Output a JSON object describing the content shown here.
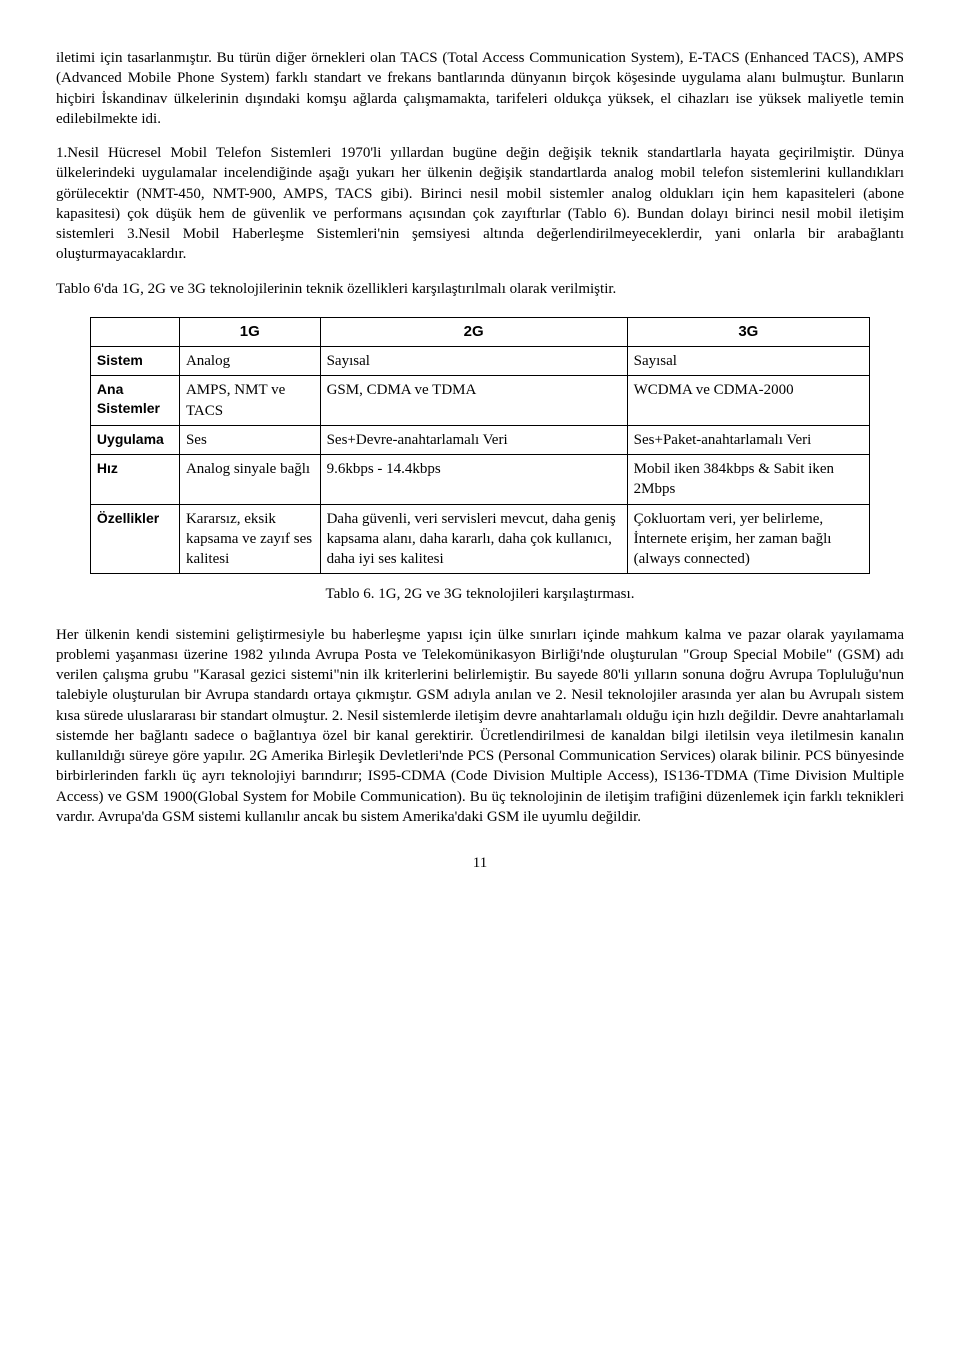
{
  "paragraphs": {
    "p1": "iletimi için tasarlanmıştır. Bu türün diğer örnekleri olan TACS (Total Access Communication System), E-TACS (Enhanced TACS), AMPS (Advanced Mobile Phone System) farklı standart ve frekans bantlarında dünyanın birçok köşesinde uygulama alanı bulmuştur. Bunların hiçbiri İskandinav ülkelerinin dışındaki komşu ağlarda çalışmamakta, tarifeleri oldukça yüksek, el cihazları ise yüksek maliyetle temin edilebilmekte idi.",
    "p2": "1.Nesil Hücresel Mobil Telefon Sistemleri 1970'li yıllardan bugüne değin değişik teknik standartlarla hayata geçirilmiştir. Dünya ülkelerindeki uygulamalar incelendiğinde aşağı yukarı her ülkenin değişik standartlarda analog mobil telefon sistemlerini kullandıkları görülecektir (NMT-450, NMT-900, AMPS, TACS gibi). Birinci nesil mobil sistemler analog oldukları için hem kapasiteleri (abone kapasitesi) çok düşük hem de güvenlik ve performans açısından çok zayıftırlar (Tablo 6). Bundan dolayı birinci nesil mobil iletişim sistemleri 3.Nesil Mobil Haberleşme Sistemleri'nin şemsiyesi altında değerlendirilmeyeceklerdir, yani onlarla bir arabağlantı oluşturmayacaklardır.",
    "p3": "Tablo 6'da 1G, 2G ve 3G teknolojilerinin teknik özellikleri karşılaştırılmalı olarak verilmiştir.",
    "p4": "Her ülkenin kendi sistemini geliştirmesiyle bu haberleşme yapısı için ülke sınırları içinde mahkum kalma ve pazar olarak yayılamama problemi yaşanması üzerine 1982 yılında Avrupa Posta ve Telekomünikasyon Birliği'nde oluşturulan \"Group Special Mobile\" (GSM) adı verilen çalışma grubu \"Karasal gezici sistemi\"nin ilk kriterlerini belirlemiştir. Bu sayede 80'li yılların sonuna doğru Avrupa Topluluğu'nun talebiyle oluşturulan bir Avrupa standardı ortaya çıkmıştır. GSM adıyla anılan ve 2. Nesil teknolojiler arasında yer alan bu Avrupalı sistem kısa sürede uluslararası bir standart olmuştur. 2. Nesil sistemlerde iletişim devre anahtarlamalı olduğu için hızlı değildir. Devre anahtarlamalı sistemde her bağlantı sadece o bağlantıya özel bir kanal gerektirir. Ücretlendirilmesi de kanaldan bilgi iletilsin veya iletilmesin kanalın kullanıldığı süreye göre yapılır. 2G Amerika Birleşik Devletleri'nde PCS (Personal Communication Services) olarak bilinir. PCS bünyesinde birbirlerinden farklı üç ayrı teknolojiyi barındırır; IS95-CDMA (Code Division Multiple Access), IS136-TDMA (Time Division Multiple Access) ve GSM 1900(Global System for Mobile Communication). Bu üç teknolojinin de iletişim trafiğini düzenlemek için farklı teknikleri vardır. Avrupa'da GSM sistemi kullanılır ancak bu sistem Amerika'daki GSM ile uyumlu değildir."
  },
  "table": {
    "header": {
      "c1": "1G",
      "c2": "2G",
      "c3": "3G"
    },
    "rows": {
      "r1": {
        "h": "Sistem",
        "c1": "Analog",
        "c2": "Sayısal",
        "c3": "Sayısal"
      },
      "r2": {
        "h": "Ana Sistemler",
        "c1": "AMPS, NMT ve TACS",
        "c2": "GSM, CDMA ve TDMA",
        "c3": "WCDMA ve CDMA-2000"
      },
      "r3": {
        "h": "Uygulama",
        "c1": "Ses",
        "c2": "Ses+Devre-anahtarlamalı Veri",
        "c3": "Ses+Paket-anahtarlamalı Veri"
      },
      "r4": {
        "h": "Hız",
        "c1": "Analog sinyale bağlı",
        "c2": "9.6kbps - 14.4kbps",
        "c3": "Mobil iken 384kbps & Sabit iken 2Mbps"
      },
      "r5": {
        "h": "Özellikler",
        "c1": "Kararsız, eksik kapsama ve zayıf ses kalitesi",
        "c2": "Daha güvenli, veri servisleri mevcut, daha geniş kapsama alanı, daha kararlı, daha çok kullanıcı, daha iyi ses kalitesi",
        "c3": "Çokluortam veri, yer belirleme, İnternete erişim, her zaman bağlı (always connected)"
      }
    },
    "caption": "Tablo 6. 1G, 2G ve 3G teknolojileri karşılaştırması."
  },
  "pagenum": "11"
}
